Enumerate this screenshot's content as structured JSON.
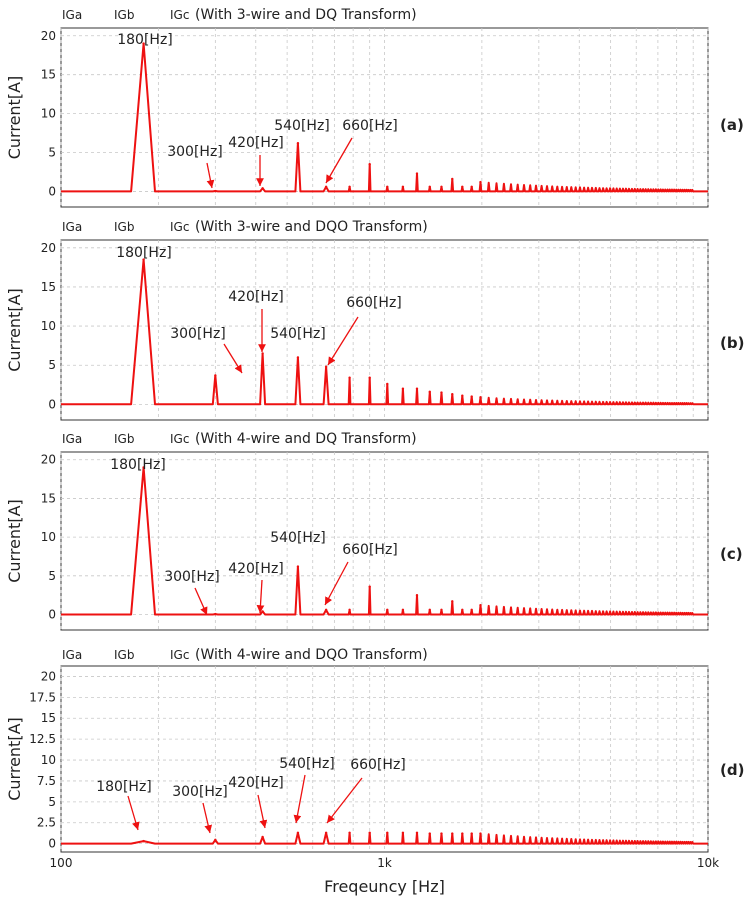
{
  "colors": {
    "series_a": "#e8242b",
    "series_b": "#2b3bd6",
    "series_c": "#e8912b",
    "trace": "#ee1111",
    "grid": "#c8c8c8",
    "frame": "#333333"
  },
  "shared_axes": {
    "xlabel": "Freqeuncy [Hz]",
    "x_ticks": [
      "100",
      "1k",
      "10k"
    ],
    "x_scale": "log",
    "xlim": [
      100,
      10000
    ]
  },
  "chart_data": [
    {
      "type": "line",
      "panel_label": "(a)",
      "legend": [
        "IGa",
        "IGb",
        "IGc"
      ],
      "title": "(With 3-wire and DQ Transform)",
      "ylabel": "Current[A]",
      "ylim": [
        -2,
        21
      ],
      "y_ticks": [
        0,
        5,
        10,
        15,
        20
      ],
      "y_tick_labels": [
        "0",
        "5",
        "10",
        "15",
        "20"
      ],
      "peaks": [
        {
          "x": 180,
          "y": 19.0
        },
        {
          "x": 300,
          "y": 0.05
        },
        {
          "x": 420,
          "y": 0.4
        },
        {
          "x": 540,
          "y": 6.2
        },
        {
          "x": 660,
          "y": 0.6
        },
        {
          "x": 780,
          "y": 0.6
        },
        {
          "x": 900,
          "y": 3.5
        },
        {
          "x": 1020,
          "y": 0.6
        },
        {
          "x": 1140,
          "y": 0.6
        },
        {
          "x": 1260,
          "y": 2.3
        },
        {
          "x": 1380,
          "y": 0.6
        },
        {
          "x": 1500,
          "y": 0.6
        },
        {
          "x": 1620,
          "y": 1.6
        },
        {
          "x": 1740,
          "y": 0.6
        },
        {
          "x": 1860,
          "y": 0.6
        },
        {
          "x": 1980,
          "y": 1.2
        }
      ],
      "annotations": [
        {
          "text": "180[Hz]",
          "x": 180,
          "y": 19.0,
          "arrow": false
        },
        {
          "text": "300[Hz]",
          "x": 300,
          "y": 0.05,
          "arrow": true
        },
        {
          "text": "420[Hz]",
          "x": 420,
          "y": 0.4,
          "arrow": true
        },
        {
          "text": "540[Hz]",
          "x": 540,
          "y": 6.2,
          "arrow": false
        },
        {
          "text": "660[Hz]",
          "x": 660,
          "y": 0.6,
          "arrow": true
        }
      ]
    },
    {
      "type": "line",
      "panel_label": "(b)",
      "legend": [
        "IGa",
        "IGb",
        "IGc"
      ],
      "title": "(With 3-wire and DQO Transform)",
      "ylabel": "Current[A]",
      "ylim": [
        -2,
        21
      ],
      "y_ticks": [
        0,
        5,
        10,
        15,
        20
      ],
      "y_tick_labels": [
        "0",
        "5",
        "10",
        "15",
        "20"
      ],
      "peaks": [
        {
          "x": 180,
          "y": 18.5
        },
        {
          "x": 300,
          "y": 3.7
        },
        {
          "x": 420,
          "y": 6.5
        },
        {
          "x": 540,
          "y": 6.0
        },
        {
          "x": 660,
          "y": 4.8
        },
        {
          "x": 780,
          "y": 3.4
        },
        {
          "x": 900,
          "y": 3.4
        },
        {
          "x": 1020,
          "y": 2.6
        },
        {
          "x": 1140,
          "y": 2.0
        },
        {
          "x": 1260,
          "y": 2.0
        },
        {
          "x": 1380,
          "y": 1.6
        },
        {
          "x": 1500,
          "y": 1.5
        },
        {
          "x": 1620,
          "y": 1.3
        },
        {
          "x": 1740,
          "y": 1.1
        },
        {
          "x": 1860,
          "y": 1.0
        },
        {
          "x": 1980,
          "y": 0.9
        }
      ],
      "annotations": [
        {
          "text": "180[Hz]",
          "x": 180,
          "y": 18.5,
          "arrow": false
        },
        {
          "text": "300[Hz]",
          "x": 300,
          "y": 3.7,
          "arrow": true
        },
        {
          "text": "420[Hz]",
          "x": 420,
          "y": 6.5,
          "arrow": true
        },
        {
          "text": "540[Hz]",
          "x": 540,
          "y": 6.0,
          "arrow": false
        },
        {
          "text": "660[Hz]",
          "x": 660,
          "y": 4.8,
          "arrow": true
        }
      ]
    },
    {
      "type": "line",
      "panel_label": "(c)",
      "legend": [
        "IGa",
        "IGb",
        "IGc"
      ],
      "title": "(With 4-wire and DQ Transform)",
      "ylabel": "Current[A]",
      "ylim": [
        -2,
        21
      ],
      "y_ticks": [
        0,
        5,
        10,
        15,
        20
      ],
      "y_tick_labels": [
        "0",
        "5",
        "10",
        "15",
        "20"
      ],
      "peaks": [
        {
          "x": 180,
          "y": 19.0
        },
        {
          "x": 300,
          "y": 0.05
        },
        {
          "x": 420,
          "y": 0.4
        },
        {
          "x": 540,
          "y": 6.2
        },
        {
          "x": 660,
          "y": 0.6
        },
        {
          "x": 780,
          "y": 0.6
        },
        {
          "x": 900,
          "y": 3.6
        },
        {
          "x": 1020,
          "y": 0.6
        },
        {
          "x": 1140,
          "y": 0.6
        },
        {
          "x": 1260,
          "y": 2.5
        },
        {
          "x": 1380,
          "y": 0.6
        },
        {
          "x": 1500,
          "y": 0.6
        },
        {
          "x": 1620,
          "y": 1.7
        },
        {
          "x": 1740,
          "y": 0.6
        },
        {
          "x": 1860,
          "y": 0.6
        },
        {
          "x": 1980,
          "y": 1.2
        }
      ],
      "annotations": [
        {
          "text": "180[Hz]",
          "x": 180,
          "y": 19.0,
          "arrow": false
        },
        {
          "text": "300[Hz]",
          "x": 300,
          "y": 0.05,
          "arrow": true
        },
        {
          "text": "420[Hz]",
          "x": 420,
          "y": 0.4,
          "arrow": true
        },
        {
          "text": "540[Hz]",
          "x": 540,
          "y": 6.2,
          "arrow": false
        },
        {
          "text": "660[Hz]",
          "x": 660,
          "y": 0.6,
          "arrow": true
        }
      ]
    },
    {
      "type": "line",
      "panel_label": "(d)",
      "legend": [
        "IGa",
        "IGb",
        "IGc"
      ],
      "title": "(With 4-wire and DQO Transform)",
      "ylabel": "Current[A]",
      "ylim": [
        -1,
        21.25
      ],
      "y_ticks": [
        0,
        2.5,
        5,
        7.5,
        10,
        12.5,
        15,
        17.5,
        20
      ],
      "y_tick_labels": [
        "0",
        "2.5",
        "5",
        "7.5",
        "10",
        "12.5",
        "15",
        "17.5",
        "20"
      ],
      "peaks": [
        {
          "x": 180,
          "y": 0.3
        },
        {
          "x": 300,
          "y": 0.45
        },
        {
          "x": 420,
          "y": 0.8
        },
        {
          "x": 540,
          "y": 1.3
        },
        {
          "x": 660,
          "y": 1.3
        },
        {
          "x": 780,
          "y": 1.3
        },
        {
          "x": 900,
          "y": 1.3
        },
        {
          "x": 1020,
          "y": 1.3
        },
        {
          "x": 1140,
          "y": 1.3
        },
        {
          "x": 1260,
          "y": 1.3
        },
        {
          "x": 1380,
          "y": 1.2
        },
        {
          "x": 1500,
          "y": 1.2
        },
        {
          "x": 1620,
          "y": 1.2
        },
        {
          "x": 1740,
          "y": 1.2
        },
        {
          "x": 1860,
          "y": 1.2
        },
        {
          "x": 1980,
          "y": 1.2
        }
      ],
      "annotations": [
        {
          "text": "180[Hz]",
          "x": 180,
          "y": 0.3,
          "arrow": true
        },
        {
          "text": "300[Hz]",
          "x": 300,
          "y": 0.45,
          "arrow": true
        },
        {
          "text": "420[Hz]",
          "x": 420,
          "y": 0.8,
          "arrow": true
        },
        {
          "text": "540[Hz]",
          "x": 540,
          "y": 1.3,
          "arrow": true
        },
        {
          "text": "660[Hz]",
          "x": 660,
          "y": 1.3,
          "arrow": true
        }
      ]
    }
  ]
}
